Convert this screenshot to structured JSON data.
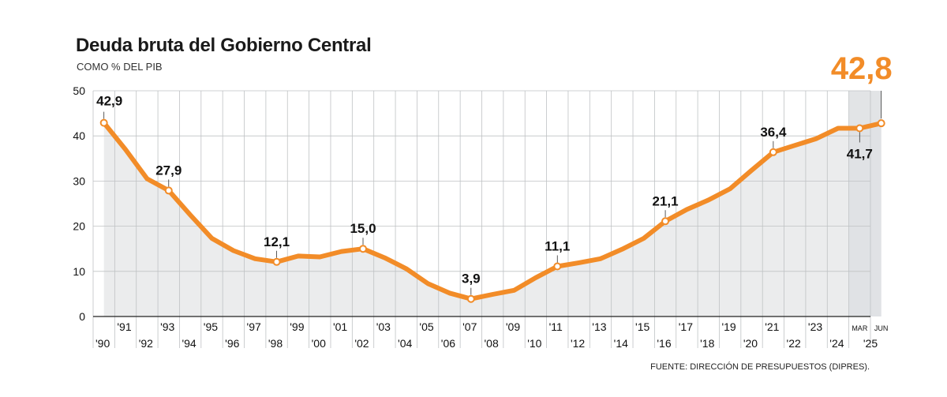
{
  "title": "Deuda bruta del Gobierno Central",
  "subtitle": "COMO % DEL PIB",
  "source": "FUENTE: DIRECCIÓN DE PRESUPUESTOS (DIPRES).",
  "highlight_value": "42,8",
  "colors": {
    "line": "#f28c28",
    "area": "#ebeced",
    "shade": "#dfe1e3",
    "grid": "#bfc2c4"
  },
  "chart_data": {
    "type": "area",
    "title": "Deuda bruta del Gobierno Central",
    "subtitle": "COMO % DEL PIB",
    "ylim": [
      0,
      50
    ],
    "yticks": [
      0,
      10,
      20,
      30,
      40,
      50
    ],
    "grid": true,
    "x": [
      "'90",
      "'91",
      "'92",
      "'93",
      "'94",
      "'95",
      "'96",
      "'97",
      "'98",
      "'99",
      "'00",
      "'01",
      "'02",
      "'03",
      "'04",
      "'05",
      "'06",
      "'07",
      "'08",
      "'09",
      "'10",
      "'11",
      "'12",
      "'13",
      "'14",
      "'15",
      "'16",
      "'17",
      "'18",
      "'19",
      "'20",
      "'21",
      "'22",
      "'23",
      "'24",
      "MAR '25",
      "JUN '25"
    ],
    "x_tick_labels": [
      "'90",
      "'91",
      "'92",
      "'93",
      "'94",
      "'95",
      "'96",
      "'97",
      "'98",
      "'99",
      "'00",
      "'01",
      "'02",
      "'03",
      "'04",
      "'05",
      "'06",
      "'07",
      "'08",
      "'09",
      "'10",
      "'11",
      "'12",
      "'13",
      "'14",
      "'15",
      "'16",
      "'17",
      "'18",
      "'19",
      "'20",
      "'21",
      "'22",
      "'23",
      "'24",
      "MAR",
      "JUN",
      "'25"
    ],
    "values": [
      42.9,
      37.0,
      30.5,
      27.9,
      22.5,
      17.3,
      14.6,
      12.8,
      12.1,
      13.4,
      13.2,
      14.4,
      15.0,
      13.0,
      10.6,
      7.3,
      5.2,
      3.9,
      4.9,
      5.8,
      8.6,
      11.1,
      11.9,
      12.8,
      14.9,
      17.3,
      21.1,
      23.7,
      25.8,
      28.3,
      32.4,
      36.4,
      37.9,
      39.4,
      41.7,
      41.7,
      42.8
    ],
    "data_labels": [
      {
        "index": 0,
        "label": "42,9"
      },
      {
        "index": 3,
        "label": "27,9"
      },
      {
        "index": 8,
        "label": "12,1"
      },
      {
        "index": 12,
        "label": "15,0"
      },
      {
        "index": 17,
        "label": "3,9"
      },
      {
        "index": 21,
        "label": "11,1"
      },
      {
        "index": 26,
        "label": "21,1"
      },
      {
        "index": 31,
        "label": "36,4"
      },
      {
        "index": 35,
        "label": "41,7"
      },
      {
        "index": 36,
        "label": "42,8"
      }
    ]
  }
}
